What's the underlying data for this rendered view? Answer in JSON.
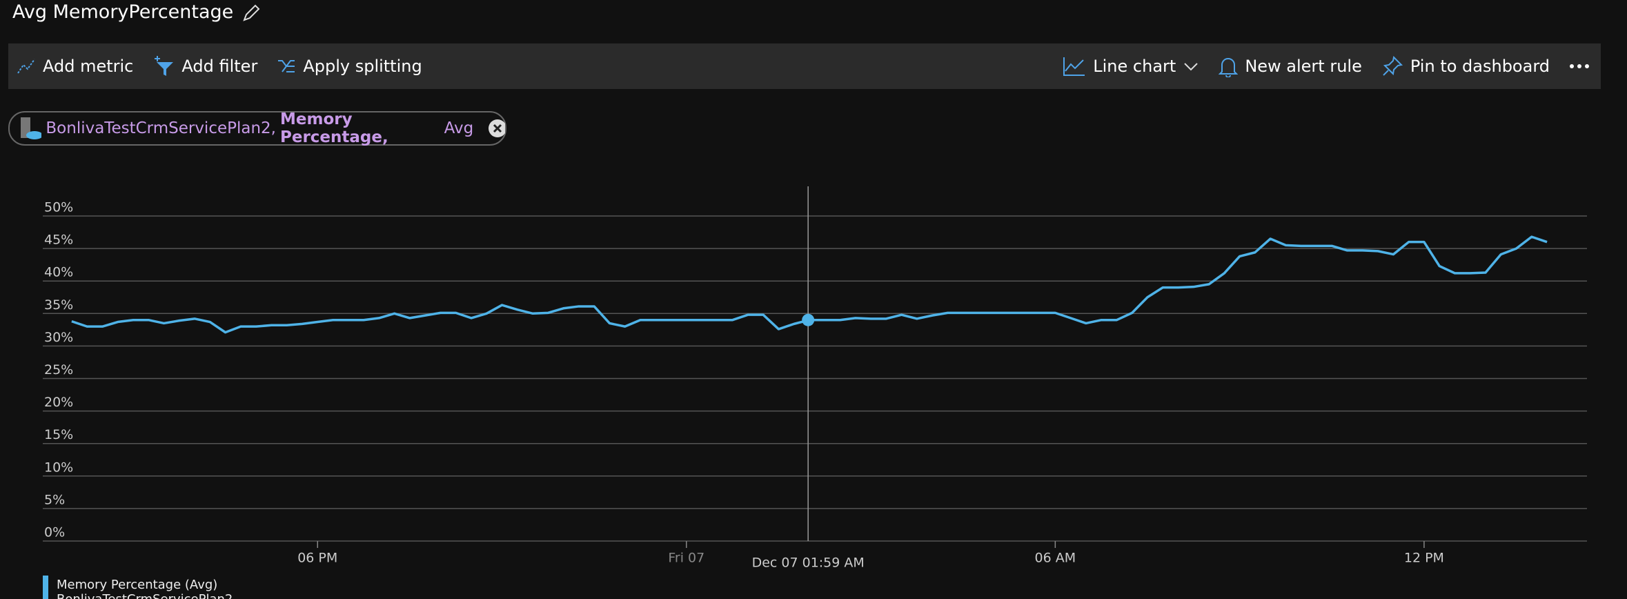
{
  "header": {
    "title": "Avg MemoryPercentage"
  },
  "toolbar": {
    "left": [
      "Add metric",
      "Add filter",
      "Apply splitting"
    ],
    "right": [
      "Line chart",
      "New alert rule",
      "Pin to dashboard"
    ]
  },
  "chip": {
    "resource": "BonlivaTestCrmServicePlan2,",
    "metric": "Memory Percentage,",
    "aggregation": "Avg"
  },
  "chart_data": {
    "type": "line",
    "x": [
      14,
      14.25,
      14.5,
      14.75,
      15,
      15.25,
      15.5,
      15.75,
      16,
      16.25,
      16.5,
      16.75,
      17,
      17.25,
      17.5,
      17.75,
      18,
      18.25,
      18.5,
      18.75,
      19,
      19.25,
      19.5,
      19.75,
      20,
      20.25,
      20.5,
      20.75,
      21,
      21.25,
      21.5,
      21.75,
      22,
      22.25,
      22.5,
      22.75,
      23,
      23.25,
      23.5,
      23.75,
      24,
      24.25,
      24.5,
      24.75,
      25,
      25.25,
      25.5,
      25.75,
      26,
      26.25,
      26.5,
      26.75,
      27,
      27.25,
      27.5,
      27.75,
      28,
      28.25,
      28.5,
      28.75,
      29,
      29.25,
      29.5,
      29.75,
      30,
      30.25,
      30.5,
      30.75,
      31,
      31.25,
      31.5,
      31.75,
      32,
      32.25,
      32.5,
      32.75,
      33,
      33.25,
      33.5,
      33.75,
      34,
      34.25,
      34.5,
      34.75,
      35,
      35.25,
      35.5,
      35.75,
      36,
      36.25,
      36.5,
      36.75,
      37,
      37.25,
      37.5,
      37.75,
      38
    ],
    "series": [
      {
        "name": "Memory Percentage (Avg)",
        "resource": "BonlivaTestCrmServicePlan2",
        "color": "#4fb3e8",
        "values": [
          33.8,
          33.0,
          33.0,
          33.7,
          34.0,
          34.0,
          33.5,
          33.9,
          34.2,
          33.7,
          32.1,
          33.0,
          33.0,
          33.2,
          33.2,
          33.4,
          33.7,
          34.0,
          34.0,
          34.0,
          34.3,
          35.0,
          34.3,
          34.7,
          35.1,
          35.1,
          34.3,
          35.0,
          36.3,
          35.6,
          35.0,
          35.1,
          35.8,
          36.1,
          36.1,
          33.5,
          33.0,
          34.0,
          34.0,
          34.0,
          34.0,
          34.0,
          34.0,
          34.0,
          34.8,
          34.8,
          32.6,
          33.4,
          34.0,
          34.0,
          34.0,
          34.3,
          34.2,
          34.2,
          34.8,
          34.2,
          34.7,
          35.1,
          35.1,
          35.1,
          35.1,
          35.1,
          35.1,
          35.1,
          35.1,
          34.3,
          33.5,
          34.0,
          34.0,
          35.1,
          37.5,
          39.0,
          39.0,
          39.1,
          39.5,
          41.2,
          43.8,
          44.4,
          46.5,
          45.5,
          45.4,
          45.4,
          45.4,
          44.7,
          44.7,
          44.6,
          44.1,
          46.0,
          46.0,
          42.3,
          41.2,
          41.2,
          41.3,
          44.1,
          45.0,
          46.8,
          46.0
        ]
      }
    ],
    "xlim": [
      13.53,
      38.65
    ],
    "xticks": [
      {
        "value": 18,
        "label": "06 PM"
      },
      {
        "value": 24,
        "label": "Fri 07"
      },
      {
        "value": 30,
        "label": "06 AM"
      },
      {
        "value": 36,
        "label": "12 PM"
      }
    ],
    "ylim": [
      0,
      50
    ],
    "yticks": [
      {
        "value": 0,
        "label": "0%"
      },
      {
        "value": 5,
        "label": "5%"
      },
      {
        "value": 10,
        "label": "10%"
      },
      {
        "value": 15,
        "label": "15%"
      },
      {
        "value": 20,
        "label": "20%"
      },
      {
        "value": 25,
        "label": "25%"
      },
      {
        "value": 30,
        "label": "30%"
      },
      {
        "value": 35,
        "label": "35%"
      },
      {
        "value": 40,
        "label": "40%"
      },
      {
        "value": 45,
        "label": "45%"
      },
      {
        "value": 50,
        "label": "50%"
      }
    ],
    "grid": true,
    "cursor": {
      "x": 25.98,
      "value": 34.0,
      "label": "Dec 07 01:59 AM"
    }
  }
}
